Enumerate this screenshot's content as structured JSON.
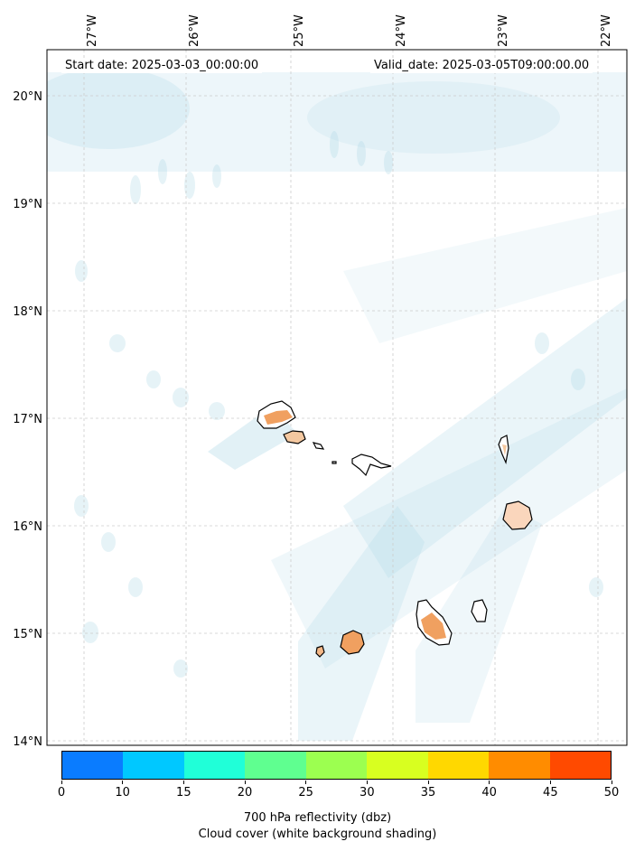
{
  "header": {
    "start_date": "Start date: 2025-03-03_00:00:00",
    "valid_date": "Valid_date: 2025-03-05T09:00:00.00"
  },
  "map": {
    "lon_labels": [
      "27°W",
      "26°W",
      "25°W",
      "24°W",
      "23°W",
      "22°W"
    ],
    "lat_labels": [
      "20°N",
      "19°N",
      "18°N",
      "17°N",
      "16°N",
      "15°N",
      "14°N"
    ],
    "land_color": "#ffffff",
    "coast_color": "#000000",
    "cloud_color": "#add8e6",
    "reflectivity_color": "#f0a060"
  },
  "colorbar": {
    "ticks": [
      "0",
      "10",
      "15",
      "20",
      "25",
      "30",
      "35",
      "40",
      "45",
      "50"
    ],
    "colors": [
      "#0a7cff",
      "#00c8ff",
      "#20ffd8",
      "#5fff90",
      "#9cff50",
      "#d8ff20",
      "#ffd800",
      "#ff8c00",
      "#ff4a00"
    ],
    "label_line1": "700 hPa reflectivity (dbz)",
    "label_line2": "Cloud cover (white background shading)"
  }
}
